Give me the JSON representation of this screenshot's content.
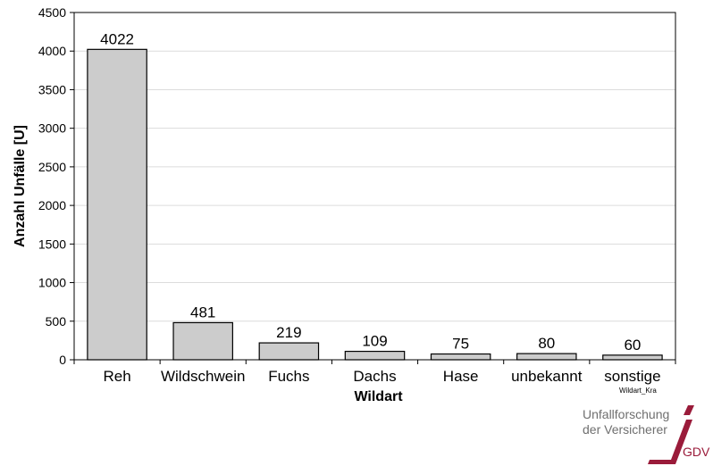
{
  "chart_data": {
    "type": "bar",
    "categories": [
      "Reh",
      "Wildschwein",
      "Fuchs",
      "Dachs",
      "Hase",
      "unbekannt",
      "sonstige"
    ],
    "values": [
      4022,
      481,
      219,
      109,
      75,
      80,
      60
    ],
    "data_labels": [
      "4022",
      "481",
      "219",
      "109",
      "75",
      "80",
      "60"
    ],
    "title": "",
    "xlabel": "Wildart",
    "ylabel": "Anzahl Unfälle [U]",
    "ylim": [
      0,
      4500
    ],
    "yticks": [
      0,
      500,
      1000,
      1500,
      2000,
      2500,
      3000,
      3500,
      4000,
      4500
    ],
    "grid": true,
    "bar_color": "#cccccc",
    "bar_edge_color": "#000000",
    "grid_color": "#dcdcdc",
    "footnote": "Wildart_Kra"
  },
  "branding": {
    "line1": "Unfallforschung",
    "line2": "der Versicherer",
    "gdv": "GDV",
    "accent_color": "#9a1b3a"
  }
}
